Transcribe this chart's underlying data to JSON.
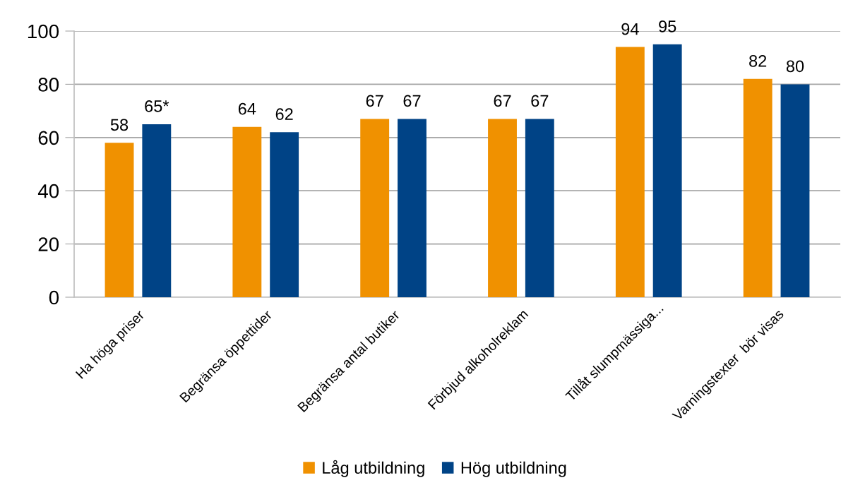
{
  "chart_data": {
    "type": "bar",
    "categories": [
      "Ha höga priser",
      "Begränsa öppettider",
      "Begränsa antal butiker",
      "Förbjud alkoholreklam",
      "Tillåt slumpmässiga...",
      "Varningstexter  bör visas"
    ],
    "series": [
      {
        "name": "Låg utbildning",
        "color": "#f09100",
        "values": [
          58,
          64,
          67,
          67,
          94,
          82
        ],
        "value_labels": [
          "58",
          "64",
          "67",
          "67",
          "94",
          "82"
        ]
      },
      {
        "name": "Hög utbildning",
        "color": "#004386",
        "values": [
          65,
          62,
          67,
          67,
          95,
          80
        ],
        "value_labels": [
          "65*",
          "62",
          "67",
          "67",
          "95",
          "80"
        ]
      }
    ],
    "ylim": [
      0,
      100
    ],
    "yticks": [
      0,
      20,
      40,
      60,
      80,
      100
    ],
    "grid": "y",
    "legend": "bottom"
  }
}
